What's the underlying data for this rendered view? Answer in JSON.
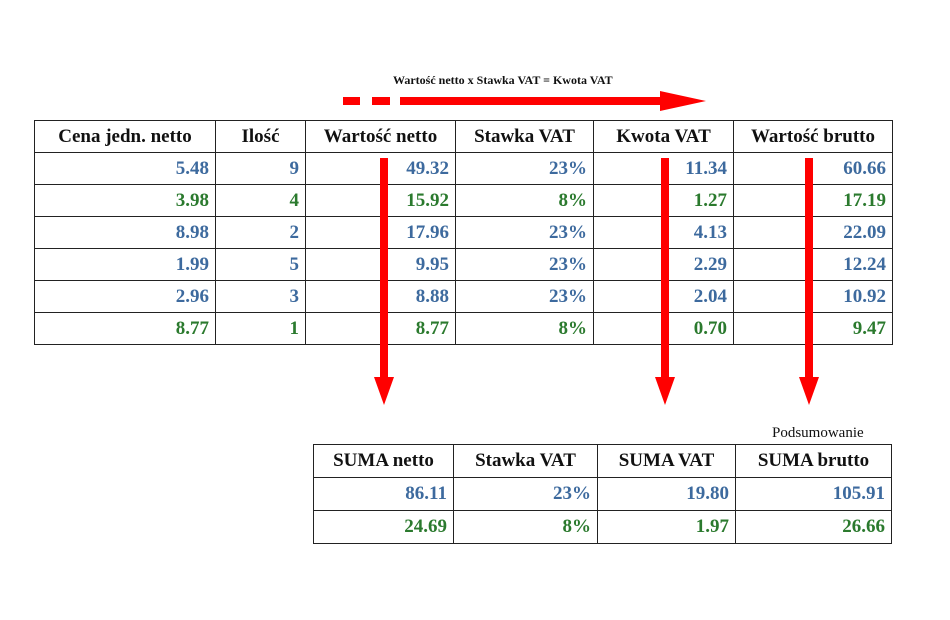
{
  "formula": "Wartość netto x Stawka VAT = Kwota VAT",
  "colors": {
    "blue": "#3d6a9e",
    "green": "#2b7a2e",
    "arrow": "#ff0000"
  },
  "main_table": {
    "headers": [
      "Cena jedn. netto",
      "Ilość",
      "Wartość netto",
      "Stawka VAT",
      "Kwota VAT",
      "Wartość brutto"
    ],
    "rows": [
      {
        "color": "blue",
        "cells": [
          "5.48",
          "9",
          "49.32",
          "23%",
          "11.34",
          "60.66"
        ]
      },
      {
        "color": "green",
        "cells": [
          "3.98",
          "4",
          "15.92",
          "8%",
          "1.27",
          "17.19"
        ]
      },
      {
        "color": "blue",
        "cells": [
          "8.98",
          "2",
          "17.96",
          "23%",
          "4.13",
          "22.09"
        ]
      },
      {
        "color": "blue",
        "cells": [
          "1.99",
          "5",
          "9.95",
          "23%",
          "2.29",
          "12.24"
        ]
      },
      {
        "color": "blue",
        "cells": [
          "2.96",
          "3",
          "8.88",
          "23%",
          "2.04",
          "10.92"
        ]
      },
      {
        "color": "green",
        "cells": [
          "8.77",
          "1",
          "8.77",
          "8%",
          "0.70",
          "9.47"
        ]
      }
    ]
  },
  "summary": {
    "caption": "Podsumowanie",
    "headers": [
      "SUMA netto",
      "Stawka VAT",
      "SUMA VAT",
      "SUMA brutto"
    ],
    "rows": [
      {
        "color": "blue",
        "cells": [
          "86.11",
          "23%",
          "19.80",
          "105.91"
        ]
      },
      {
        "color": "green",
        "cells": [
          "24.69",
          "8%",
          "1.97",
          "26.66"
        ]
      }
    ]
  }
}
